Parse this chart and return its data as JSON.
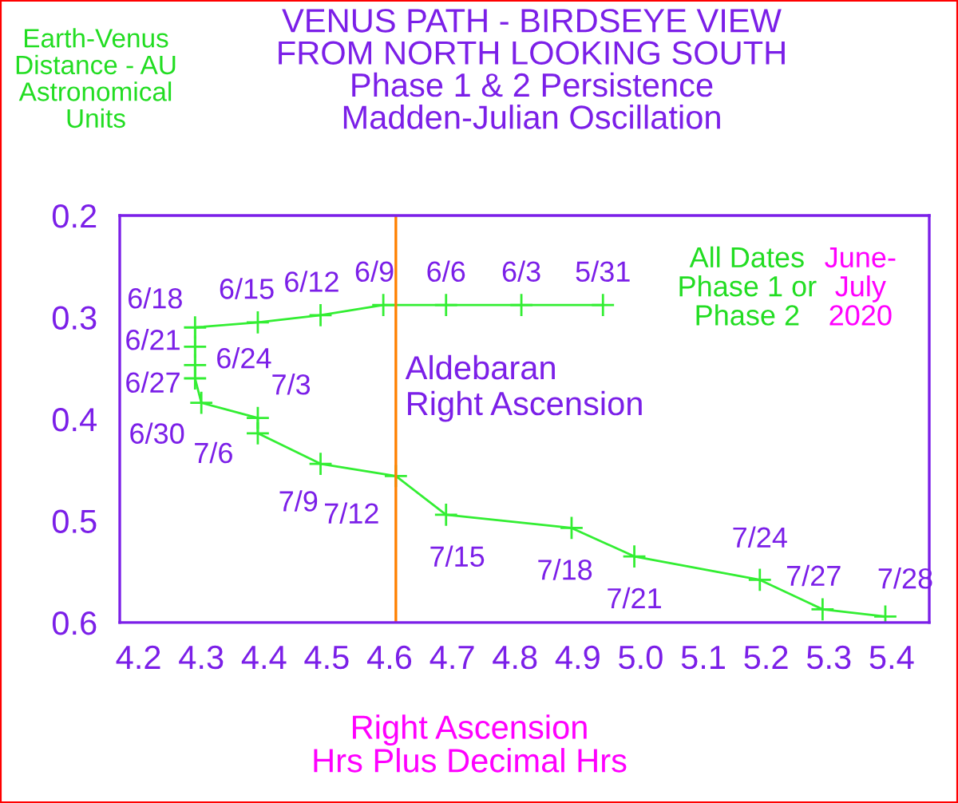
{
  "chart_data": {
    "type": "line",
    "title": "VENUS PATH - BIRDSEYE VIEW\nFROM NORTH LOOKING SOUTH\nPhase 1 & 2 Persistence\nMadden-Julian Oscillation",
    "xlabel": "Right Ascension\nHrs Plus Decimal Hrs",
    "ylabel": "Earth-Venus\nDistance - AU\nAstronomical\nUnits",
    "series": [
      {
        "color": "#33ee33",
        "x": [
          4.94,
          4.81,
          4.69,
          4.59,
          4.49,
          4.39,
          4.29,
          4.29,
          4.29,
          4.29,
          4.3,
          4.39,
          4.39,
          4.49,
          4.61,
          4.69,
          4.89,
          4.99,
          5.19,
          5.29,
          5.39
        ],
        "values": [
          0.288,
          0.288,
          0.288,
          0.288,
          0.298,
          0.305,
          0.31,
          0.329,
          0.347,
          0.36,
          0.384,
          0.399,
          0.414,
          0.444,
          0.456,
          0.494,
          0.507,
          0.535,
          0.558,
          0.587,
          0.594
        ]
      }
    ],
    "marker": "cross",
    "xlim": [
      4.17,
      5.46
    ],
    "xticks": [
      4.2,
      4.3,
      4.4,
      4.5,
      4.6,
      4.7,
      4.8,
      4.9,
      {
        "value": 5.0,
        "label": "5.0"
      },
      5.1,
      5.2,
      5.3,
      5.4
    ],
    "ylim": [
      0.6,
      0.2
    ],
    "yticks": [
      0.2,
      0.3,
      0.4,
      0.5,
      0.6
    ],
    "ref_lines": [
      {
        "axis": "x",
        "value": 4.61,
        "label": "Aldebaran\nRight Ascension",
        "color": "#ff8000"
      }
    ],
    "annotations": [
      {
        "text": "5/31",
        "x": 4.94,
        "y": 0.288
      },
      {
        "text": "6/3",
        "x": 4.81,
        "y": 0.288
      },
      {
        "text": "6/6",
        "x": 4.69,
        "y": 0.288
      },
      {
        "text": "6/9",
        "x": 4.59,
        "y": 0.288
      },
      {
        "text": "6/12",
        "x": 4.49,
        "y": 0.298
      },
      {
        "text": "6/15",
        "x": 4.39,
        "y": 0.305
      },
      {
        "text": "6/18",
        "x": 4.29,
        "y": 0.31
      },
      {
        "text": "6/21",
        "x": 4.29,
        "y": 0.329
      },
      {
        "text": "6/24",
        "x": 4.29,
        "y": 0.347
      },
      {
        "text": "6/27",
        "x": 4.29,
        "y": 0.36
      },
      {
        "text": "6/30",
        "x": 4.3,
        "y": 0.384
      },
      {
        "text": "7/3",
        "x": 4.39,
        "y": 0.399
      },
      {
        "text": "7/6",
        "x": 4.39,
        "y": 0.414
      },
      {
        "text": "7/9",
        "x": 4.49,
        "y": 0.444
      },
      {
        "text": "7/12",
        "x": 4.61,
        "y": 0.456
      },
      {
        "text": "7/15",
        "x": 4.69,
        "y": 0.494
      },
      {
        "text": "7/18",
        "x": 4.89,
        "y": 0.507
      },
      {
        "text": "7/21",
        "x": 4.99,
        "y": 0.535
      },
      {
        "text": "7/24",
        "x": 5.19,
        "y": 0.558
      },
      {
        "text": "7/27",
        "x": 5.29,
        "y": 0.587
      },
      {
        "text": "7/28",
        "x": 5.39,
        "y": 0.594
      },
      "All Dates\nPhase 1 or\nPhase 2",
      "June-\nJuly\n2020"
    ]
  }
}
